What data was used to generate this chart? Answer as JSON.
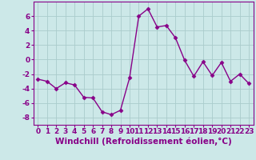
{
  "x": [
    0,
    1,
    2,
    3,
    4,
    5,
    6,
    7,
    8,
    9,
    10,
    11,
    12,
    13,
    14,
    15,
    16,
    17,
    18,
    19,
    20,
    21,
    22,
    23
  ],
  "y": [
    -2.7,
    -3.0,
    -4.0,
    -3.2,
    -3.5,
    -5.2,
    -5.3,
    -7.2,
    -7.6,
    -7.0,
    -2.5,
    6.0,
    7.0,
    4.5,
    4.7,
    3.0,
    -0.1,
    -2.3,
    -0.3,
    -2.2,
    -0.4,
    -3.0,
    -2.0,
    -3.3
  ],
  "line_color": "#880088",
  "marker": "D",
  "marker_size": 2.5,
  "bg_color": "#cce8e8",
  "grid_color": "#aacccc",
  "xlabel": "Windchill (Refroidissement éolien,°C)",
  "xlim": [
    -0.5,
    23.5
  ],
  "ylim": [
    -9,
    8
  ],
  "yticks": [
    -8,
    -6,
    -4,
    -2,
    0,
    2,
    4,
    6
  ],
  "xticks": [
    0,
    1,
    2,
    3,
    4,
    5,
    6,
    7,
    8,
    9,
    10,
    11,
    12,
    13,
    14,
    15,
    16,
    17,
    18,
    19,
    20,
    21,
    22,
    23
  ],
  "tick_label_fontsize": 6.5,
  "xlabel_fontsize": 7.5,
  "line_width": 1.0
}
